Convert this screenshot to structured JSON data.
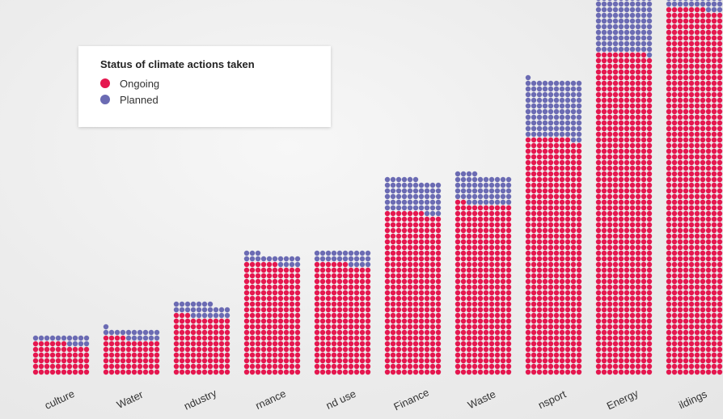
{
  "legend": {
    "title": "Status of climate actions taken",
    "items": [
      {
        "label": "Ongoing",
        "color": "#e5174f"
      },
      {
        "label": "Planned",
        "color": "#6b6bb3"
      }
    ]
  },
  "chart_data": {
    "type": "bar",
    "subtype": "stacked waffle (dot) columns",
    "categories": [
      "Agriculture",
      "Water",
      "Industry",
      "Governance",
      "Land use",
      "Finance",
      "Waste",
      "Transport",
      "Energy",
      "Buildings"
    ],
    "visible_category_labels": [
      "culture",
      "Water",
      "ndustry",
      "rnance",
      "nd use",
      "Finance",
      "Waste",
      "nsport",
      "Energy",
      "ildings"
    ],
    "series": [
      {
        "name": "Ongoing",
        "values": [
          56,
          64,
          103,
          196,
          196,
          287,
          302,
          418,
          569,
          647
        ]
      },
      {
        "name": "Planned",
        "values": [
          14,
          17,
          24,
          17,
          24,
          59,
          52,
          103,
          140,
          98
        ]
      }
    ],
    "legend_position": "top-left",
    "grid": false,
    "notes": "Each dot is one climate action; dots stacked 10 per row per column."
  }
}
